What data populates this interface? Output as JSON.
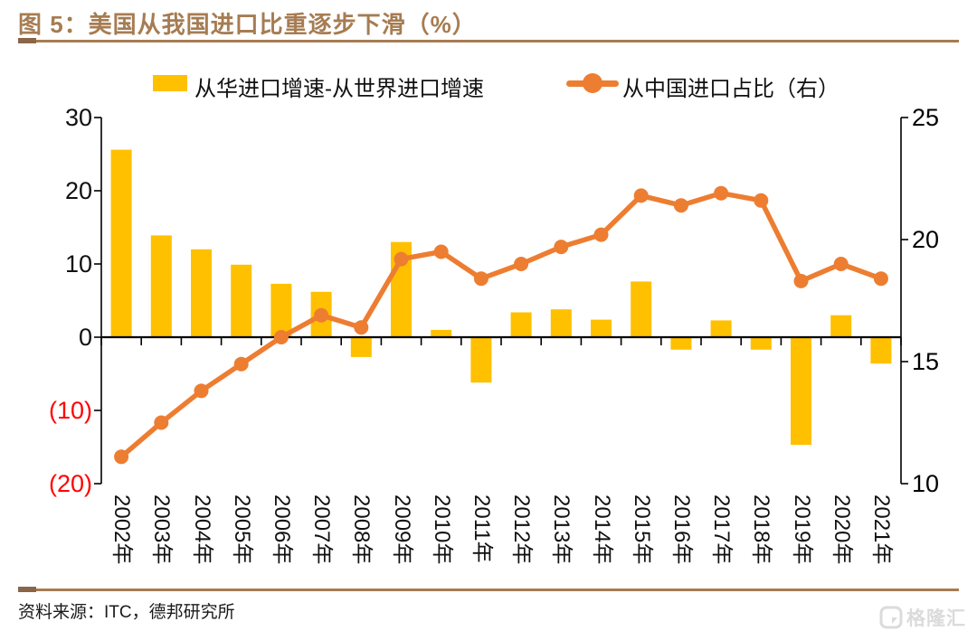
{
  "header": {
    "title": "图 5：美国从我国进口比重逐步下滑（%）"
  },
  "legend": [
    {
      "label": "从华进口增速-从世界进口增速",
      "swatch": "bar-swatch",
      "color": "#FFC000"
    },
    {
      "label": "从中国进口占比（右）",
      "swatch": "line-swatch",
      "color": "#ED7D31"
    }
  ],
  "footer": {
    "source": "资料来源：ITC，德邦研究所",
    "watermark": "格隆汇"
  },
  "colors": {
    "bar": "#FFC000",
    "line": "#ED7D31",
    "title_brown": "#A67C52",
    "rule_brown": "#A67C52",
    "negative_tick": "#FF0000",
    "axis": "#000000",
    "watermark_gray": "#DBDBDB"
  },
  "chart_data": {
    "type": "bar+line",
    "title": "图 5：美国从我国进口比重逐步下滑（%）",
    "categories": [
      "2002年",
      "2003年",
      "2004年",
      "2005年",
      "2006年",
      "2007年",
      "2008年",
      "2009年",
      "2010年",
      "2011年",
      "2012年",
      "2013年",
      "2014年",
      "2015年",
      "2016年",
      "2017年",
      "2018年",
      "2019年",
      "2020年",
      "2021年"
    ],
    "series": [
      {
        "name": "从华进口增速-从世界进口增速",
        "type": "bar",
        "axis": "left",
        "color": "#FFC000",
        "values": [
          25.6,
          13.9,
          12.0,
          9.9,
          7.3,
          6.2,
          -2.7,
          13.0,
          1.0,
          -6.2,
          3.4,
          3.8,
          2.4,
          7.6,
          -1.7,
          2.3,
          -1.7,
          -14.7,
          3.0,
          -3.6
        ]
      },
      {
        "name": "从中国进口占比（右）",
        "type": "line",
        "axis": "right",
        "color": "#ED7D31",
        "values": [
          11.1,
          12.5,
          13.8,
          14.9,
          16.0,
          16.9,
          16.4,
          19.2,
          19.5,
          18.4,
          19.0,
          19.7,
          20.2,
          21.8,
          21.4,
          21.9,
          21.6,
          18.3,
          19.0,
          18.4
        ]
      }
    ],
    "left_axis": {
      "min": -20,
      "max": 30,
      "ticks": [
        30,
        20,
        10,
        0,
        -10,
        -20
      ],
      "tick_labels": [
        "30",
        "20",
        "10",
        "0",
        "(10)",
        "(20)"
      ],
      "negative_color": "#FF0000"
    },
    "right_axis": {
      "min": 10,
      "max": 25,
      "ticks": [
        25,
        20,
        15,
        10
      ],
      "tick_labels": [
        "25",
        "20",
        "15",
        "10"
      ]
    },
    "grid": false,
    "legend_position": "top"
  }
}
